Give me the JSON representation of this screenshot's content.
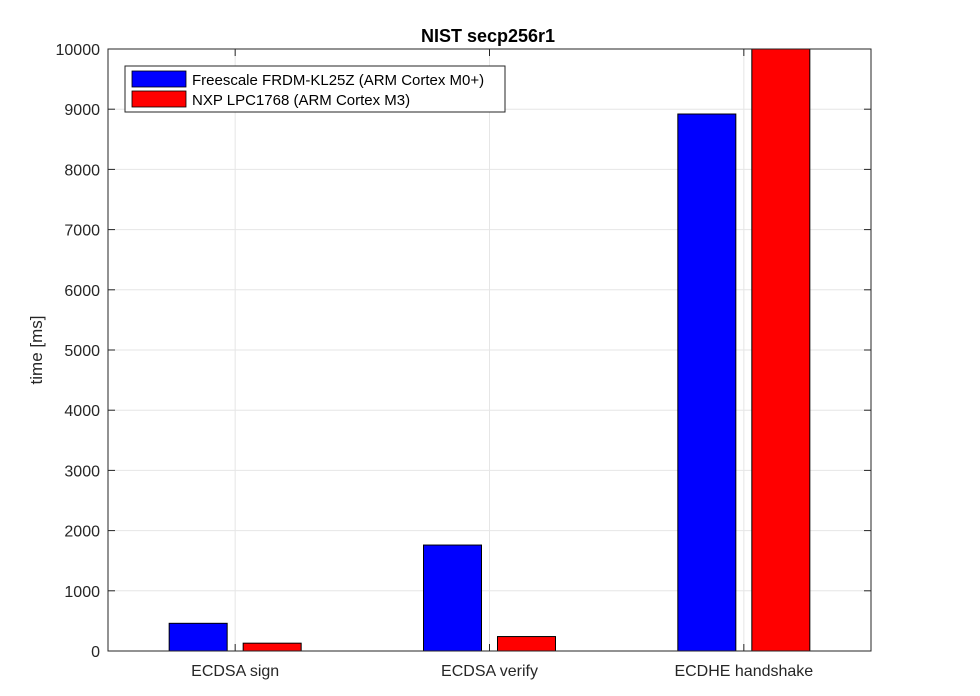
{
  "chart_data": {
    "type": "bar",
    "title": "NIST secp256r1",
    "xlabel": "",
    "ylabel": "time [ms]",
    "categories": [
      "ECDSA sign",
      "ECDSA verify",
      "ECDHE handshake"
    ],
    "series": [
      {
        "name": "Freescale FRDM-KL25Z (ARM Cortex M0+)",
        "color": "#0000ff",
        "values": [
          460,
          1760,
          8920
        ]
      },
      {
        "name": "NXP LPC1768 (ARM Cortex M3)",
        "color": "#ff0000",
        "values": [
          130,
          240,
          10000
        ]
      }
    ],
    "ylim": [
      0,
      10000
    ],
    "yticks": [
      0,
      1000,
      2000,
      3000,
      4000,
      5000,
      6000,
      7000,
      8000,
      9000,
      10000
    ],
    "grid": true,
    "legend_position": "top-left"
  }
}
